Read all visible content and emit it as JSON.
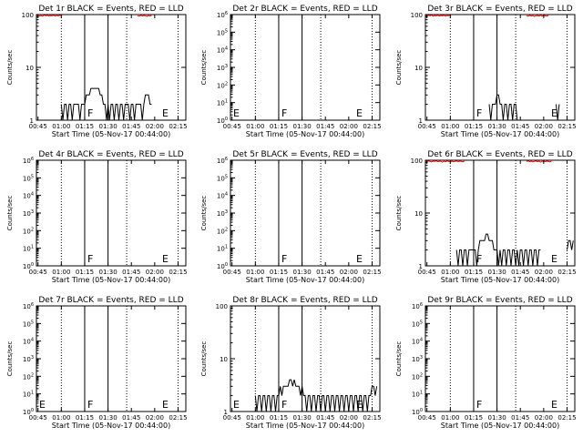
{
  "colors": {
    "events": "#000000",
    "lld": "#ff0000",
    "background": "#ffffff"
  },
  "common": {
    "xlabel": "Start Time (05-Nov-17 00:44:00)",
    "ylabel": "Counts/sec",
    "xtick_labels": [
      "00:45",
      "01:00",
      "01:15",
      "01:30",
      "01:45",
      "02:00",
      "02:15"
    ],
    "xlim_minutes": [
      44,
      140
    ]
  },
  "chart_data": [
    {
      "type": "line",
      "title": "Det 1r BLACK = Events, RED = LLD",
      "yscale": "log",
      "ylim": [
        1,
        100
      ],
      "ytick_labels": [
        "1",
        "10",
        "100"
      ],
      "markers": [
        {
          "text": "F",
          "x": 75
        },
        {
          "text": "E",
          "x": 123
        }
      ],
      "series": [
        {
          "name": "Events",
          "color": "#000000",
          "x": [
            60,
            61,
            62,
            63,
            64,
            65,
            66,
            67,
            68,
            69,
            70,
            71,
            72,
            73,
            74,
            75,
            76,
            77,
            78,
            79,
            80,
            81,
            82,
            83,
            84,
            85,
            86,
            87,
            88,
            89,
            90,
            91,
            92,
            93,
            94,
            95,
            96,
            97,
            98,
            99,
            100,
            101,
            102,
            103,
            104,
            105,
            106,
            107,
            108,
            109,
            110,
            111,
            112,
            113,
            114,
            115,
            116,
            117,
            118
          ],
          "y": [
            2,
            1,
            2,
            2,
            1,
            2,
            2,
            1,
            2,
            2,
            2,
            2,
            1,
            2,
            2,
            2,
            3,
            3,
            3,
            4,
            4,
            4,
            4,
            4,
            4,
            3,
            3,
            2,
            2,
            1,
            2,
            1,
            2,
            2,
            1,
            2,
            2,
            1,
            2,
            2,
            1,
            2,
            2,
            2,
            1,
            2,
            2,
            1,
            2,
            2,
            2,
            2,
            1,
            2,
            3,
            3,
            3,
            2,
            2
          ]
        },
        {
          "name": "LLD",
          "color": "#ff0000",
          "x": [
            44,
            45,
            46,
            47,
            48,
            49,
            50,
            51,
            52,
            53,
            54,
            55,
            56,
            57,
            58,
            59,
            60,
            109,
            110,
            111,
            112,
            113,
            114,
            115,
            116,
            117,
            118
          ],
          "y": [
            95,
            97,
            94,
            96,
            93,
            98,
            95,
            97,
            94,
            96,
            95,
            97,
            94,
            96,
            95,
            97,
            96,
            95,
            93,
            97,
            94,
            96,
            95,
            92,
            96,
            94,
            97
          ]
        }
      ]
    },
    {
      "type": "line",
      "title": "Det 2r BLACK = Events, RED = LLD",
      "yscale": "log",
      "ylim": [
        1,
        1000000
      ],
      "ytick_labels": [
        "10^0",
        "10^1",
        "10^2",
        "10^3",
        "10^4",
        "10^5",
        "10^6"
      ],
      "markers": [
        {
          "text": "E",
          "x": 44
        },
        {
          "text": "F",
          "x": 75
        },
        {
          "text": "E",
          "x": 123
        }
      ],
      "series": []
    },
    {
      "type": "line",
      "title": "Det 3r BLACK = Events, RED = LLD",
      "yscale": "log",
      "ylim": [
        1,
        100
      ],
      "ytick_labels": [
        "1",
        "10",
        "100"
      ],
      "markers": [
        {
          "text": "F",
          "x": 75
        },
        {
          "text": "E",
          "x": 123
        }
      ],
      "series": [
        {
          "name": "Events",
          "color": "#000000",
          "x": [
            85,
            86,
            87,
            88,
            89,
            90,
            91,
            92,
            93,
            94,
            95,
            96,
            97,
            98,
            99,
            100,
            101,
            102,
            103,
            128,
            129,
            130
          ],
          "y": [
            2,
            1,
            2,
            2,
            2,
            3,
            3,
            2,
            2,
            1,
            2,
            2,
            1,
            2,
            2,
            1,
            2,
            2,
            1,
            2,
            1,
            2
          ]
        },
        {
          "name": "LLD",
          "color": "#ff0000",
          "x": [
            44,
            45,
            46,
            47,
            48,
            49,
            50,
            51,
            52,
            53,
            54,
            55,
            56,
            57,
            58,
            59,
            60,
            109,
            110,
            111,
            112,
            113,
            114,
            115,
            116,
            117,
            118,
            119,
            120,
            121,
            122,
            123
          ],
          "y": [
            96,
            94,
            97,
            95,
            98,
            93,
            96,
            95,
            97,
            94,
            96,
            95,
            97,
            94,
            96,
            95,
            96,
            95,
            93,
            97,
            94,
            96,
            92,
            95,
            96,
            94,
            97,
            93,
            96,
            95,
            94,
            96
          ]
        }
      ]
    },
    {
      "type": "line",
      "title": "Det 4r BLACK = Events, RED = LLD",
      "yscale": "log",
      "ylim": [
        1,
        1000000
      ],
      "ytick_labels": [
        "10^0",
        "10^1",
        "10^2",
        "10^3",
        "10^4",
        "10^5",
        "10^6"
      ],
      "markers": [
        {
          "text": "F",
          "x": 75
        },
        {
          "text": "E",
          "x": 123
        }
      ],
      "series": []
    },
    {
      "type": "line",
      "title": "Det 5r BLACK = Events, RED = LLD",
      "yscale": "log",
      "ylim": [
        1,
        1000000
      ],
      "ytick_labels": [
        "10^0",
        "10^1",
        "10^2",
        "10^3",
        "10^4",
        "10^5",
        "10^6"
      ],
      "markers": [
        {
          "text": "F",
          "x": 75
        },
        {
          "text": "E",
          "x": 123
        }
      ],
      "series": []
    },
    {
      "type": "line",
      "title": "Det 6r BLACK = Events, RED = LLD",
      "yscale": "log",
      "ylim": [
        1,
        100
      ],
      "ytick_labels": [
        "1",
        "10",
        "100"
      ],
      "markers": [
        {
          "text": "F",
          "x": 75
        },
        {
          "text": "E",
          "x": 123
        }
      ],
      "series": [
        {
          "name": "Events",
          "color": "#000000",
          "x": [
            64,
            65,
            66,
            67,
            68,
            69,
            70,
            71,
            72,
            73,
            74,
            75,
            76,
            77,
            78,
            79,
            80,
            81,
            82,
            83,
            84,
            85,
            86,
            87,
            88,
            89,
            90,
            91,
            92,
            93,
            94,
            95,
            96,
            97,
            98,
            99,
            100,
            101,
            102,
            103,
            104,
            105,
            106,
            107,
            108,
            109,
            110,
            111,
            112,
            113,
            114,
            115,
            116,
            117,
            118,
            135,
            136,
            137,
            138,
            139
          ],
          "y": [
            2,
            1,
            2,
            2,
            1,
            2,
            2,
            1,
            2,
            2,
            2,
            2,
            2,
            1,
            2,
            3,
            3,
            3,
            3,
            4,
            4,
            3,
            3,
            3,
            2,
            2,
            2,
            1,
            2,
            1,
            2,
            2,
            1,
            2,
            2,
            1,
            2,
            2,
            1,
            2,
            1,
            2,
            2,
            1,
            2,
            2,
            1,
            2,
            2,
            1,
            2,
            2,
            1,
            2,
            2,
            2,
            3,
            3,
            2,
            3
          ]
        },
        {
          "name": "LLD",
          "color": "#ff0000",
          "x": [
            44,
            45,
            46,
            47,
            48,
            49,
            50,
            51,
            52,
            53,
            54,
            55,
            56,
            57,
            58,
            59,
            60,
            61,
            62,
            63,
            64,
            65,
            66,
            67,
            68,
            69,
            109,
            110,
            111,
            112,
            113,
            114,
            115,
            116,
            117,
            118,
            119,
            120,
            121,
            122,
            123,
            124,
            125
          ],
          "y": [
            96,
            94,
            97,
            95,
            93,
            96,
            95,
            97,
            94,
            96,
            95,
            92,
            96,
            94,
            97,
            95,
            93,
            96,
            94,
            95,
            97,
            94,
            96,
            95,
            93,
            96,
            95,
            97,
            94,
            96,
            93,
            95,
            97,
            94,
            96,
            92,
            95,
            97,
            94,
            96,
            95,
            93,
            96
          ]
        }
      ]
    },
    {
      "type": "line",
      "title": "Det 7r BLACK = Events, RED = LLD",
      "yscale": "log",
      "ylim": [
        1,
        1000000
      ],
      "ytick_labels": [
        "10^0",
        "10^1",
        "10^2",
        "10^3",
        "10^4",
        "10^5",
        "10^6"
      ],
      "markers": [
        {
          "text": "E",
          "x": 44
        },
        {
          "text": "F",
          "x": 75
        },
        {
          "text": "E",
          "x": 123
        }
      ],
      "series": []
    },
    {
      "type": "line",
      "title": "Det 8r BLACK = Events, RED = LLD",
      "yscale": "log",
      "ylim": [
        1,
        100
      ],
      "ytick_labels": [
        "1",
        "10",
        "100"
      ],
      "markers": [
        {
          "text": "E",
          "x": 44
        },
        {
          "text": "F",
          "x": 75
        },
        {
          "text": "E",
          "x": 123
        }
      ],
      "series": [
        {
          "name": "Events",
          "color": "#000000",
          "x": [
            60,
            61,
            62,
            63,
            64,
            65,
            66,
            67,
            68,
            69,
            70,
            71,
            72,
            73,
            74,
            75,
            76,
            77,
            78,
            79,
            80,
            81,
            82,
            83,
            84,
            85,
            86,
            87,
            88,
            89,
            90,
            91,
            92,
            93,
            94,
            95,
            96,
            97,
            98,
            99,
            100,
            101,
            102,
            103,
            104,
            105,
            106,
            107,
            108,
            109,
            110,
            111,
            112,
            113,
            114,
            115,
            116,
            117,
            118,
            119,
            120,
            121,
            122,
            123,
            124,
            125,
            126,
            127,
            128,
            129,
            130,
            131,
            132,
            133,
            134,
            135,
            136,
            137,
            138
          ],
          "y": [
            2,
            1,
            2,
            2,
            1,
            2,
            2,
            1,
            2,
            2,
            1,
            2,
            2,
            1,
            2,
            2,
            3,
            2,
            3,
            3,
            3,
            3,
            4,
            4,
            3,
            4,
            3,
            3,
            3,
            2,
            3,
            2,
            2,
            1,
            2,
            2,
            1,
            2,
            2,
            1,
            2,
            2,
            1,
            2,
            2,
            1,
            2,
            2,
            1,
            2,
            2,
            1,
            2,
            2,
            1,
            2,
            2,
            1,
            2,
            2,
            1,
            2,
            2,
            1,
            2,
            2,
            1,
            2,
            2,
            1,
            2,
            2,
            1,
            2,
            2,
            3,
            3,
            2,
            3
          ]
        }
      ]
    },
    {
      "type": "line",
      "title": "Det 9r BLACK = Events, RED = LLD",
      "yscale": "log",
      "ylim": [
        1,
        1000000
      ],
      "ytick_labels": [
        "10^0",
        "10^1",
        "10^2",
        "10^3",
        "10^4",
        "10^5",
        "10^6"
      ],
      "markers": [
        {
          "text": "F",
          "x": 75
        },
        {
          "text": "E",
          "x": 123
        }
      ],
      "series": []
    }
  ]
}
